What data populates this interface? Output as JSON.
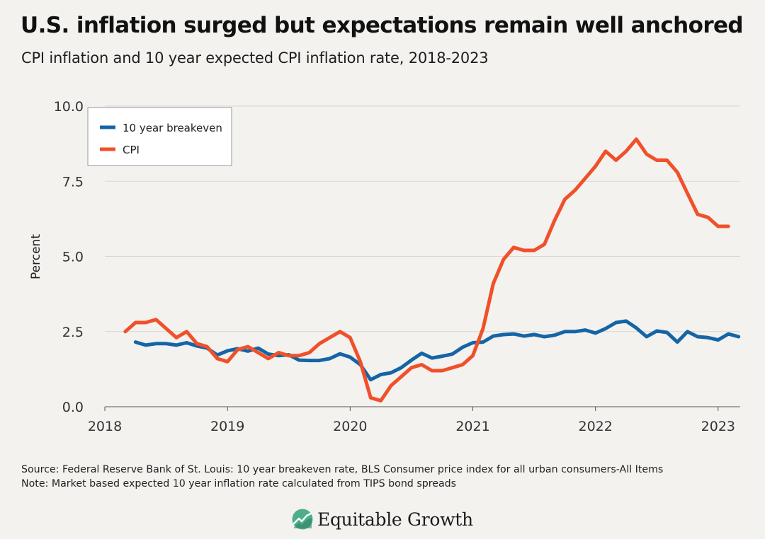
{
  "title": "U.S. inflation surged but expectations remain well anchored",
  "subtitle": "CPI inflation and 10 year expected CPI inflation rate, 2018-2023",
  "source_line": "Source: Federal Reserve Bank of St. Louis: 10 year breakeven rate, BLS Consumer price index for all urban consumers-All Items",
  "note_line": "Note: Market based expected 10 year inflation rate calculated from TIPS bond spreads",
  "brand": {
    "name": "Equitable Growth",
    "icon": "equitable-growth-logo-icon"
  },
  "chart_data": {
    "type": "line",
    "ylabel": "Percent",
    "xlabel": "",
    "ylim": [
      0,
      10
    ],
    "xlim": [
      2018,
      2023.18
    ],
    "yticks": [
      "0.0",
      "2.5",
      "5.0",
      "7.5",
      "10.0"
    ],
    "ytick_values": [
      0,
      2.5,
      5,
      7.5,
      10
    ],
    "xticks": [
      "2018",
      "2019",
      "2020",
      "2021",
      "2022",
      "2023"
    ],
    "xtick_values": [
      2018,
      2019,
      2020,
      2021,
      2022,
      2023
    ],
    "grid": "horizontal",
    "legend_position": "top-left",
    "series": [
      {
        "name": "10 year breakeven",
        "color": "#1565a6",
        "x": [
          2018.25,
          2018.333,
          2018.417,
          2018.5,
          2018.583,
          2018.667,
          2018.75,
          2018.833,
          2018.917,
          2019.0,
          2019.083,
          2019.167,
          2019.25,
          2019.333,
          2019.417,
          2019.5,
          2019.583,
          2019.667,
          2019.75,
          2019.833,
          2019.917,
          2020.0,
          2020.083,
          2020.167,
          2020.25,
          2020.333,
          2020.417,
          2020.5,
          2020.583,
          2020.667,
          2020.75,
          2020.833,
          2020.917,
          2021.0,
          2021.083,
          2021.167,
          2021.25,
          2021.333,
          2021.417,
          2021.5,
          2021.583,
          2021.667,
          2021.75,
          2021.833,
          2021.917,
          2022.0,
          2022.083,
          2022.167,
          2022.25,
          2022.333,
          2022.417,
          2022.5,
          2022.583,
          2022.667,
          2022.75,
          2022.833,
          2022.917,
          2023.0,
          2023.083,
          2023.167
        ],
        "values": [
          2.15,
          2.05,
          2.1,
          2.1,
          2.05,
          2.13,
          2.02,
          1.95,
          1.72,
          1.86,
          1.93,
          1.85,
          1.95,
          1.75,
          1.7,
          1.73,
          1.55,
          1.54,
          1.54,
          1.6,
          1.76,
          1.65,
          1.4,
          0.9,
          1.07,
          1.13,
          1.3,
          1.55,
          1.78,
          1.62,
          1.68,
          1.75,
          1.98,
          2.13,
          2.15,
          2.35,
          2.4,
          2.42,
          2.35,
          2.4,
          2.33,
          2.38,
          2.5,
          2.5,
          2.55,
          2.45,
          2.6,
          2.8,
          2.85,
          2.62,
          2.33,
          2.52,
          2.47,
          2.15,
          2.5,
          2.33,
          2.3,
          2.22,
          2.42,
          2.33
        ]
      },
      {
        "name": "CPI",
        "color": "#f0502a",
        "x": [
          2018.167,
          2018.25,
          2018.333,
          2018.417,
          2018.5,
          2018.583,
          2018.667,
          2018.75,
          2018.833,
          2018.917,
          2019.0,
          2019.083,
          2019.167,
          2019.25,
          2019.333,
          2019.417,
          2019.5,
          2019.583,
          2019.667,
          2019.75,
          2019.833,
          2019.917,
          2020.0,
          2020.083,
          2020.167,
          2020.25,
          2020.333,
          2020.417,
          2020.5,
          2020.583,
          2020.667,
          2020.75,
          2020.833,
          2020.917,
          2021.0,
          2021.083,
          2021.167,
          2021.25,
          2021.333,
          2021.417,
          2021.5,
          2021.583,
          2021.667,
          2021.75,
          2021.833,
          2021.917,
          2022.0,
          2022.083,
          2022.167,
          2022.25,
          2022.333,
          2022.417,
          2022.5,
          2022.583,
          2022.667,
          2022.75,
          2022.833,
          2022.917,
          2023.0,
          2023.083
        ],
        "values": [
          2.5,
          2.8,
          2.8,
          2.9,
          2.6,
          2.3,
          2.5,
          2.1,
          2.0,
          1.6,
          1.5,
          1.9,
          2.0,
          1.8,
          1.6,
          1.8,
          1.7,
          1.7,
          1.8,
          2.1,
          2.3,
          2.5,
          2.3,
          1.5,
          0.3,
          0.2,
          0.7,
          1.0,
          1.3,
          1.4,
          1.2,
          1.2,
          1.3,
          1.4,
          1.7,
          2.6,
          4.1,
          4.9,
          5.3,
          5.2,
          5.2,
          5.4,
          6.2,
          6.9,
          7.2,
          7.6,
          8.0,
          8.5,
          8.2,
          8.5,
          8.9,
          8.4,
          8.2,
          8.2,
          7.8,
          7.1,
          6.4,
          6.3,
          6.0,
          6.0
        ]
      }
    ]
  }
}
